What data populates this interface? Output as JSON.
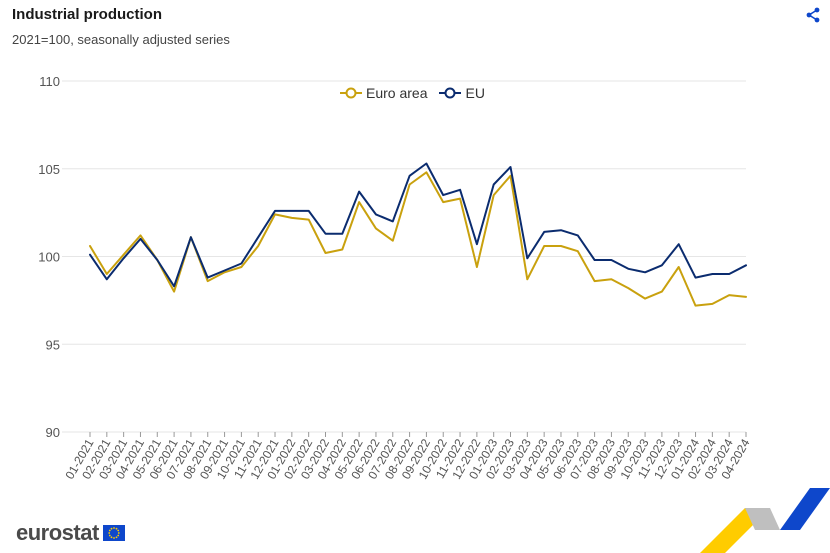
{
  "header": {
    "title": "Industrial production",
    "subtitle": "2021=100, seasonally adjusted series"
  },
  "icons": {
    "share": "share-icon",
    "flag": "eu-flag-icon"
  },
  "brand": {
    "wordmark": "eurostat"
  },
  "colors": {
    "euro_area": "#c9a10e",
    "eu": "#0b2c6f",
    "grid": "#e6e6e6",
    "axis_text": "#555555",
    "accent_blue": "#0e47cb",
    "accent_yellow": "#ffcc00"
  },
  "chart_data": {
    "type": "line",
    "title": "Industrial production",
    "subtitle": "2021=100, seasonally adjusted series",
    "xlabel": "",
    "ylabel": "",
    "ylim": [
      90,
      110
    ],
    "yticks": [
      90,
      95,
      100,
      105,
      110
    ],
    "grid": true,
    "legend_position": "top-center",
    "categories": [
      "01-2021",
      "02-2021",
      "03-2021",
      "04-2021",
      "05-2021",
      "06-2021",
      "07-2021",
      "08-2021",
      "09-2021",
      "10-2021",
      "11-2021",
      "12-2021",
      "01-2022",
      "02-2022",
      "03-2022",
      "04-2022",
      "05-2022",
      "06-2022",
      "07-2022",
      "08-2022",
      "09-2022",
      "10-2022",
      "11-2022",
      "12-2022",
      "01-2023",
      "02-2023",
      "03-2023",
      "04-2023",
      "05-2023",
      "06-2023",
      "07-2023",
      "08-2023",
      "09-2023",
      "10-2023",
      "11-2023",
      "12-2023",
      "01-2024",
      "02-2024",
      "03-2024",
      "04-2024"
    ],
    "series": [
      {
        "name": "Euro area",
        "values": [
          100.6,
          99.0,
          100.1,
          101.2,
          99.8,
          98.0,
          101.1,
          98.6,
          99.1,
          99.4,
          100.6,
          102.4,
          102.2,
          102.1,
          100.2,
          100.4,
          103.1,
          101.6,
          100.9,
          104.1,
          104.8,
          103.1,
          103.3,
          99.4,
          103.5,
          104.6,
          98.7,
          100.6,
          100.6,
          100.3,
          98.6,
          98.7,
          98.2,
          97.6,
          98.0,
          99.4,
          97.2,
          97.3,
          97.8,
          97.7
        ]
      },
      {
        "name": "EU",
        "values": [
          100.1,
          98.7,
          99.9,
          101.0,
          99.8,
          98.3,
          101.1,
          98.8,
          99.2,
          99.6,
          101.1,
          102.6,
          102.6,
          102.6,
          101.3,
          101.3,
          103.7,
          102.4,
          102.0,
          104.6,
          105.3,
          103.5,
          103.8,
          100.7,
          104.1,
          105.1,
          99.9,
          101.4,
          101.5,
          101.2,
          99.8,
          99.8,
          99.3,
          99.1,
          99.5,
          100.7,
          98.8,
          99.0,
          99.0,
          99.5
        ]
      }
    ]
  }
}
